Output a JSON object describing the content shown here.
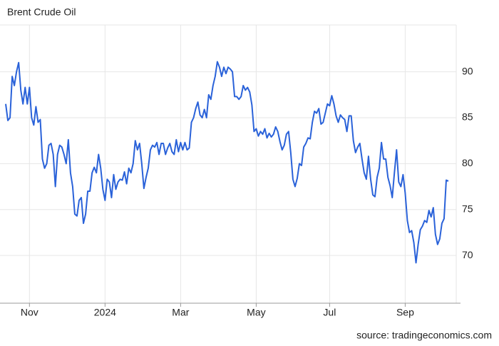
{
  "chart_data": {
    "type": "line",
    "title": "Brent Crude Oil",
    "source": "source: tradingeconomics.com",
    "categories": [
      null,
      null,
      null,
      null,
      null,
      null,
      null,
      null,
      null,
      null,
      null,
      "Nov",
      null,
      null,
      null,
      null,
      null,
      null,
      null,
      null,
      null,
      null,
      null,
      null,
      null,
      null,
      null,
      null,
      null,
      null,
      null,
      null,
      null,
      null,
      null,
      null,
      null,
      null,
      null,
      null,
      null,
      null,
      null,
      null,
      null,
      null,
      "2024",
      null,
      null,
      null,
      null,
      null,
      null,
      null,
      null,
      null,
      null,
      null,
      null,
      null,
      null,
      null,
      null,
      null,
      null,
      null,
      null,
      null,
      null,
      null,
      null,
      null,
      null,
      null,
      null,
      null,
      null,
      null,
      null,
      null,
      null,
      "Mar",
      null,
      null,
      null,
      null,
      null,
      null,
      null,
      null,
      null,
      null,
      null,
      null,
      null,
      null,
      null,
      null,
      null,
      null,
      null,
      null,
      null,
      null,
      null,
      null,
      null,
      null,
      null,
      null,
      null,
      null,
      null,
      null,
      null,
      null,
      "May",
      null,
      null,
      null,
      null,
      null,
      null,
      null,
      null,
      null,
      null,
      null,
      null,
      null,
      null,
      null,
      null,
      null,
      null,
      null,
      null,
      null,
      null,
      null,
      null,
      null,
      null,
      null,
      null,
      null,
      null,
      null,
      null,
      null,
      "Jul",
      null,
      null,
      null,
      null,
      null,
      null,
      null,
      null,
      null,
      null,
      null,
      null,
      null,
      null,
      null,
      null,
      null,
      null,
      null,
      null,
      null,
      null,
      null,
      null,
      null,
      null,
      null,
      null,
      null,
      null,
      null,
      null,
      null,
      null,
      "Sep",
      null,
      null,
      null,
      null,
      null,
      null,
      null,
      null,
      null,
      null,
      null,
      null,
      null,
      null,
      null,
      null,
      null,
      null,
      null,
      null
    ],
    "series": [
      {
        "name": "Brent Crude Oil",
        "color": "#2a62d9",
        "values": [
          86.5,
          84.7,
          85,
          89.5,
          88.5,
          90,
          91,
          88,
          86.5,
          88.3,
          86.5,
          88.3,
          85,
          84.2,
          86.2,
          84.5,
          84.8,
          80.5,
          79.5,
          80,
          82,
          82.2,
          81,
          77.5,
          81,
          82,
          81.8,
          81,
          80,
          82.6,
          79,
          77.5,
          74.5,
          74.3,
          76,
          76.3,
          73.5,
          74.5,
          77,
          77,
          79,
          79.6,
          79,
          81,
          79.5,
          77.2,
          76,
          78.3,
          78,
          76.3,
          78.8,
          77.2,
          78,
          78.3,
          78.2,
          79.1,
          77.8,
          79.5,
          79,
          80,
          82.5,
          81.5,
          82.2,
          80,
          77.3,
          78.5,
          79.5,
          81.5,
          82,
          81.8,
          82.3,
          81,
          82.2,
          82.2,
          81,
          81.7,
          82.2,
          81.3,
          81,
          82.6,
          81.3,
          82.3,
          81.5,
          82.3,
          81.5,
          81.7,
          84.5,
          85,
          86,
          86.7,
          85.3,
          85,
          85.9,
          85,
          87.5,
          87,
          88.5,
          89.5,
          91.1,
          90.5,
          89.5,
          90.5,
          89.8,
          90.5,
          90.3,
          90,
          87.3,
          87.3,
          87,
          87.3,
          88.5,
          88,
          88.3,
          87.8,
          86.4,
          83.5,
          83.8,
          83,
          83.5,
          83.2,
          83.8,
          82.8,
          83.3,
          82.9,
          83.2,
          84,
          83.5,
          82.4,
          81.5,
          82,
          83.2,
          83.5,
          81.2,
          78.3,
          77.5,
          78.4,
          80,
          79.8,
          81.8,
          82.2,
          82.8,
          82.7,
          84.5,
          85.7,
          85.5,
          86,
          84.3,
          84.5,
          85.5,
          86.5,
          86.3,
          87.4,
          86.5,
          85.2,
          84.5,
          85.3,
          85,
          84.8,
          83.5,
          85.2,
          85.2,
          82.5,
          81.2,
          81.8,
          82.2,
          80.5,
          79,
          78.3,
          80.8,
          78.3,
          76.6,
          76.4,
          78.5,
          79.5,
          82.3,
          80.5,
          80.5,
          78.5,
          77.6,
          76.3,
          79,
          81.5,
          78,
          77.5,
          78.8,
          76.8,
          73.8,
          72.5,
          72.7,
          71.4,
          69.2,
          71.2,
          72.8,
          73.2,
          73.8,
          73.6,
          74.9,
          74.2,
          75.2,
          72.3,
          71.2,
          71.8,
          73.5,
          74,
          78.2,
          78.1
        ]
      }
    ],
    "ylim": [
      64.8,
      95.1
    ],
    "yticks": [
      70,
      75,
      80,
      85,
      90
    ],
    "grid": true
  }
}
